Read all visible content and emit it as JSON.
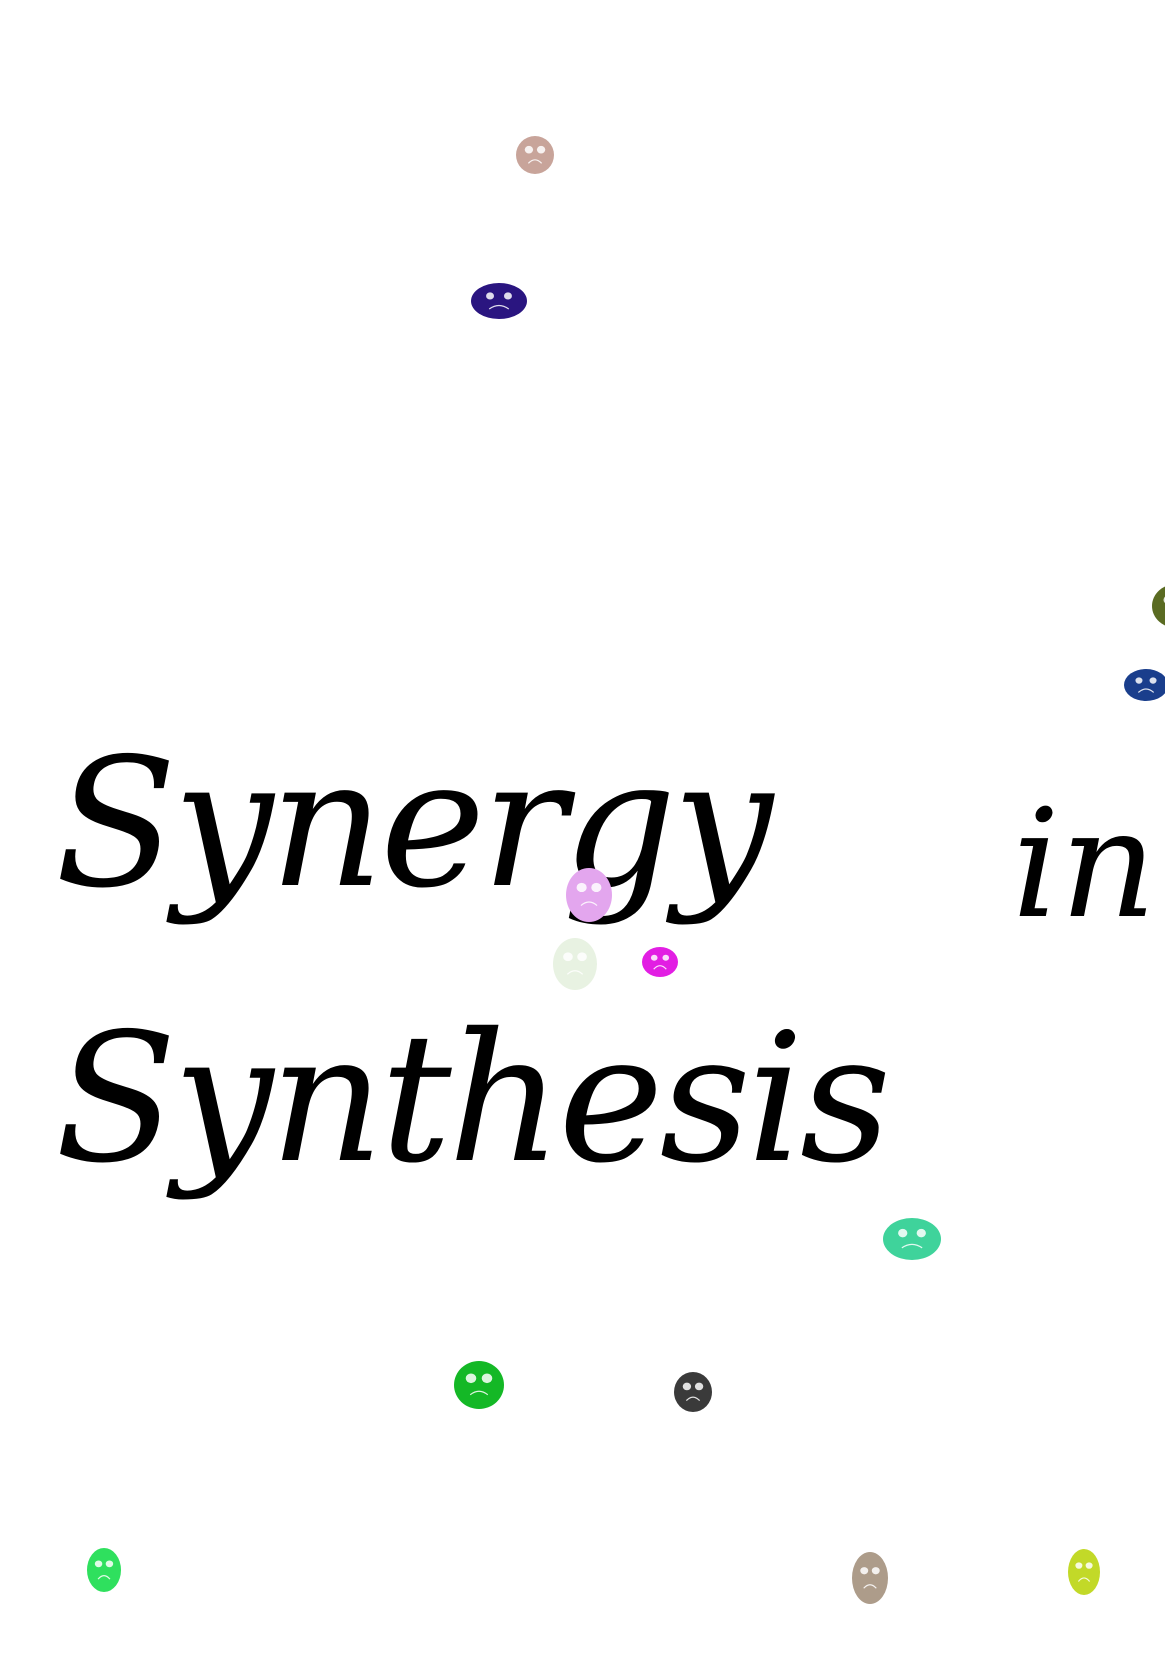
{
  "title": {
    "words": [
      "Synergy",
      "in",
      "Synthesis"
    ]
  },
  "blobs": [
    {
      "name": "blob-tan",
      "color": "#c8a49a"
    },
    {
      "name": "blob-indigo",
      "color": "#2a1580"
    },
    {
      "name": "blob-olive",
      "color": "#5a6b22"
    },
    {
      "name": "blob-navy",
      "color": "#1a3e8c"
    },
    {
      "name": "blob-lavender",
      "color": "#e3a6ee"
    },
    {
      "name": "blob-pale-green",
      "color": "#e8f2e2"
    },
    {
      "name": "blob-magenta",
      "color": "#e21ee3"
    },
    {
      "name": "blob-teal",
      "color": "#3fd39b"
    },
    {
      "name": "blob-green",
      "color": "#14b826"
    },
    {
      "name": "blob-charcoal",
      "color": "#3a3a3a"
    },
    {
      "name": "blob-light-green",
      "color": "#2fe05e"
    },
    {
      "name": "blob-taupe",
      "color": "#ad9c8a"
    },
    {
      "name": "blob-lime",
      "color": "#c2d928"
    }
  ]
}
